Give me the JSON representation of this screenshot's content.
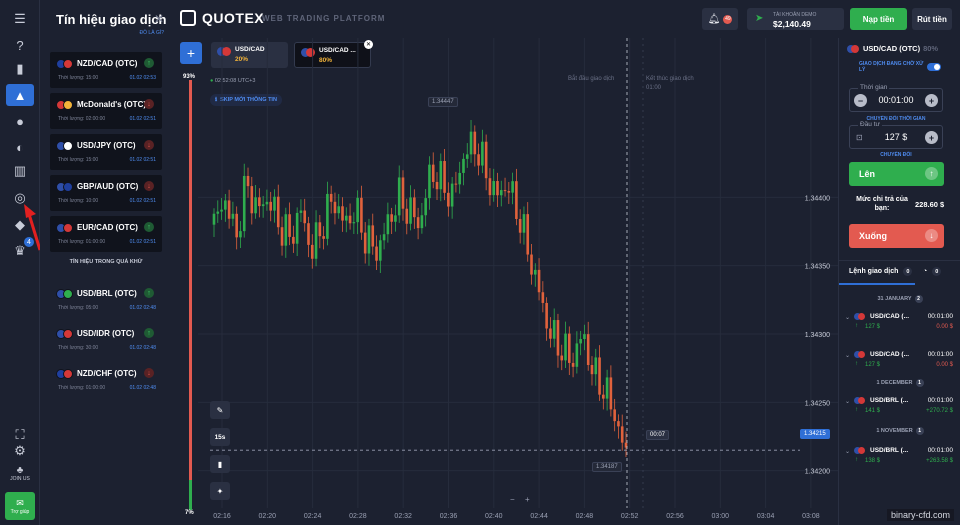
{
  "signals": {
    "title": "Tín hiệu giao dịch",
    "link": "ĐÒ LÀ GÌ?",
    "active": [
      {
        "name": "NZD/CAD (OTC)",
        "dir": "up",
        "meta": "Thời lượng: 15:00",
        "time": "01.02 02:53",
        "c1": "#1f3f9e",
        "c2": "#d43838"
      },
      {
        "name": "McDonald's (OTC)",
        "dir": "down",
        "meta": "Thời lượng: 02:00:00",
        "time": "01.02 02:51",
        "c1": "#d43838",
        "c2": "#f3b43a"
      },
      {
        "name": "USD/JPY (OTC)",
        "dir": "down",
        "meta": "Thời lượng: 15:00",
        "time": "01.02 02:51",
        "c1": "#2f4fa8",
        "c2": "#ffffff"
      },
      {
        "name": "GBP/AUD (OTC)",
        "dir": "down",
        "meta": "Thời lượng: 10:00",
        "time": "01.02 02:51",
        "c1": "#2f4fa8",
        "c2": "#1f3f9e"
      },
      {
        "name": "EUR/CAD (OTC)",
        "dir": "up",
        "meta": "Thời lượng: 01:00:00",
        "time": "01.02 02:51",
        "c1": "#2f4fa8",
        "c2": "#d43838"
      }
    ],
    "past_title": "TÍN HIỆU TRONG QUÁ KHỨ",
    "past": [
      {
        "name": "USD/BRL (OTC)",
        "dir": "up",
        "meta": "Thời lượng: 05:00",
        "time": "01.02 02:48",
        "c1": "#2f4fa8",
        "c2": "#2fae4e"
      },
      {
        "name": "USD/IDR (OTC)",
        "dir": "up",
        "meta": "Thời lượng: 30:00",
        "time": "01.02 02:48",
        "c1": "#2f4fa8",
        "c2": "#d43838"
      },
      {
        "name": "NZD/CHF (OTC)",
        "dir": "down",
        "meta": "Thời lượng: 01:00:00",
        "time": "01.02 02:48",
        "c1": "#1f3f9e",
        "c2": "#d43838"
      }
    ]
  },
  "header": {
    "brand": "QUOTEX",
    "platform": "WEB TRADING PLATFORM",
    "notif_count": "49",
    "account_label": "TÀI KHOẢN DEMO",
    "balance": "$2,140.49",
    "deposit": "Nạp tiền",
    "withdraw": "Rút tiền"
  },
  "rail": {
    "join": "JOIN US",
    "help": "Trợ giúp",
    "badge": "4"
  },
  "tabs": [
    {
      "name": "USD/CAD",
      "pct": "20%"
    },
    {
      "name": "USD/CAD ...",
      "pct": "80%"
    }
  ],
  "chart": {
    "clock": "02:52:08",
    "tz": "UTC+3",
    "new_signal": "SKIP MỚI THÔNG TIN",
    "sentiment_top": "93%",
    "sentiment_bottom": "7%",
    "start_label": "Bắt đầu giao dịch",
    "end_label": "Kết thúc giao dịch",
    "end_time": "01:00",
    "timer": "00:07",
    "timeframe": "15s",
    "price_high_tag": "1.34447",
    "price_low_tag": "1.34187",
    "current_price": "1.34215",
    "zoom_out": "−",
    "zoom_in": "+"
  },
  "chart_data": {
    "type": "candlestick",
    "xlabels": [
      "02:16",
      "02:20",
      "02:24",
      "02:28",
      "02:32",
      "02:36",
      "02:40",
      "02:44",
      "02:48",
      "02:52",
      "02:56",
      "03:00",
      "03:04",
      "03:08"
    ],
    "yticks": [
      1.342,
      1.3425,
      1.343,
      1.3435,
      1.344
    ],
    "ylim": [
      1.3418,
      1.3448
    ],
    "close_series": [
      1.3438,
      1.344,
      1.3437,
      1.3441,
      1.3439,
      1.344,
      1.3438,
      1.3437,
      1.3439,
      1.3436,
      1.3438,
      1.344,
      1.3438,
      1.3439,
      1.3437,
      1.3436,
      1.3438,
      1.344,
      1.3439,
      1.3438,
      1.3442,
      1.3441,
      1.344,
      1.3443,
      1.3444,
      1.3442,
      1.344,
      1.3441,
      1.3439,
      1.3436,
      1.3433,
      1.343,
      1.3429,
      1.3428,
      1.343,
      1.3427,
      1.3426,
      1.3424,
      1.3421
    ]
  },
  "trade": {
    "asset": "USD/CAD (OTC)",
    "asset_pct": "80%",
    "pending": "GIAO DỊCH ĐANG CHỜ XỬ LÝ",
    "time_label": "Thời gian",
    "time_value": "00:01:00",
    "switch_time": "CHUYỂN ĐỔI THỜI GIAN",
    "invest_label": "Đầu tư",
    "invest_value": "127 $",
    "switch": "CHUYỂN ĐỔI",
    "up": "Lên",
    "payout_label": "Mức chi trả của bạn:",
    "payout_value": "228.60 $",
    "down": "Xuống"
  },
  "orders": {
    "tab_label": "Lệnh giao dịch",
    "tab_count": "0",
    "tab2_count": "0",
    "groups": [
      {
        "day": "31 JANUARY",
        "count": "2"
      },
      {
        "day": "1 DECEMBER",
        "count": "1"
      },
      {
        "day": "1 NOVEMBER",
        "count": "1"
      }
    ],
    "items": [
      {
        "name": "USD/CAD (...",
        "time": "00:01:00",
        "amount": "127 $",
        "pl": "0.00 $",
        "pl_color": "#e35a50"
      },
      {
        "name": "USD/CAD (...",
        "time": "00:01:00",
        "amount": "127 $",
        "pl": "0.00 $",
        "pl_color": "#e35a50"
      },
      {
        "name": "USD/BRL (...",
        "time": "00:01:00",
        "amount": "141 $",
        "pl": "+270.72 $",
        "pl_color": "#2fae4e"
      },
      {
        "name": "USD/BRL (...",
        "time": "00:01:00",
        "amount": "138 $",
        "pl": "+263.58 $",
        "pl_color": "#2fae4e"
      }
    ]
  },
  "watermark": "binary-cfd.com"
}
